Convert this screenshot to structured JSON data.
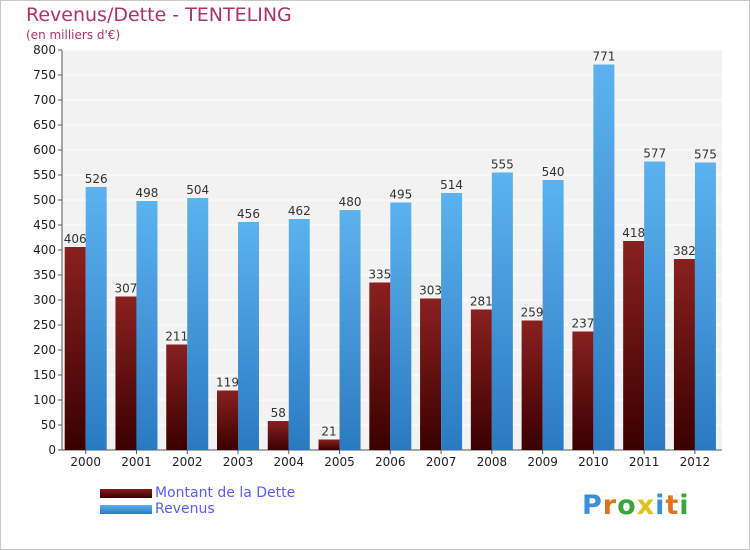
{
  "chart_data": {
    "type": "bar",
    "title": "Revenus/Dette - TENTELING",
    "subtitle": "(en milliers d'€)",
    "categories": [
      "2000",
      "2001",
      "2002",
      "2003",
      "2004",
      "2005",
      "2006",
      "2007",
      "2008",
      "2009",
      "2010",
      "2011",
      "2012"
    ],
    "series": [
      {
        "name": "Montant de la Dette",
        "color": "#7a1414",
        "values": [
          406,
          307,
          211,
          119,
          58,
          21,
          335,
          303,
          281,
          259,
          237,
          418,
          382
        ]
      },
      {
        "name": "Revenus",
        "color": "#3d9ae0",
        "values": [
          526,
          498,
          504,
          456,
          462,
          480,
          495,
          514,
          555,
          540,
          771,
          577,
          575
        ]
      }
    ],
    "ylim": [
      0,
      800
    ],
    "yticks": [
      0,
      50,
      100,
      150,
      200,
      250,
      300,
      350,
      400,
      450,
      500,
      550,
      600,
      650,
      700,
      750,
      800
    ],
    "grid": true,
    "legend_position": "bottom-left"
  },
  "logo": {
    "text": "Proxiti",
    "colors": [
      "#3a8fd6",
      "#e0731c",
      "#3aa53a",
      "#e0c21c",
      "#3a8fd6",
      "#e0731c",
      "#3aa53a"
    ]
  }
}
